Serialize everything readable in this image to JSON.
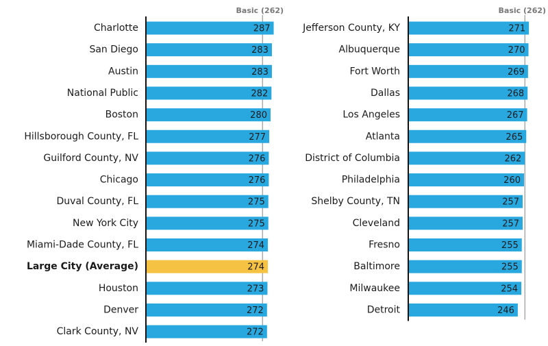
{
  "chart_data": [
    {
      "type": "bar",
      "orientation": "horizontal",
      "categories": [
        "Charlotte",
        "San Diego",
        "Austin",
        "National Public",
        "Boston",
        "Hillsborough County, FL",
        "Guilford County, NV",
        "Chicago",
        "Duval County, FL",
        "New York City",
        "Miami-Dade County, FL",
        "Large City (Average)",
        "Houston",
        "Denver",
        "Clark County, NV"
      ],
      "values": [
        287,
        283,
        283,
        282,
        280,
        277,
        276,
        276,
        275,
        275,
        274,
        274,
        273,
        272,
        272
      ],
      "color": "#29a8e0",
      "colors": [
        "#29a8e0",
        "#29a8e0",
        "#29a8e0",
        "#29a8e0",
        "#29a8e0",
        "#29a8e0",
        "#29a8e0",
        "#29a8e0",
        "#29a8e0",
        "#29a8e0",
        "#29a8e0",
        "#f6c243",
        "#29a8e0",
        "#29a8e0",
        "#29a8e0"
      ],
      "xlim": [
        0,
        300
      ],
      "reference": {
        "value": 262,
        "label": "Basic (262)"
      }
    },
    {
      "type": "bar",
      "orientation": "horizontal",
      "categories": [
        "Jefferson County, KY",
        "Albuquerque",
        "Fort Worth",
        "Dallas",
        "Los Angeles",
        "Atlanta",
        "District of Columbia",
        "Philadelphia",
        "Shelby County, TN",
        "Cleveland",
        "Fresno",
        "Baltimore",
        "Milwaukee",
        "Detroit"
      ],
      "values": [
        271,
        270,
        269,
        268,
        267,
        265,
        262,
        260,
        257,
        257,
        255,
        255,
        254,
        246
      ],
      "color": "#29a8e0",
      "colors": [
        "#29a8e0",
        "#29a8e0",
        "#29a8e0",
        "#29a8e0",
        "#29a8e0",
        "#29a8e0",
        "#29a8e0",
        "#29a8e0",
        "#29a8e0",
        "#29a8e0",
        "#29a8e0",
        "#29a8e0",
        "#29a8e0",
        "#29a8e0"
      ],
      "xlim": [
        0,
        300
      ],
      "reference": {
        "value": 262,
        "label": "Basic (262)"
      }
    }
  ]
}
